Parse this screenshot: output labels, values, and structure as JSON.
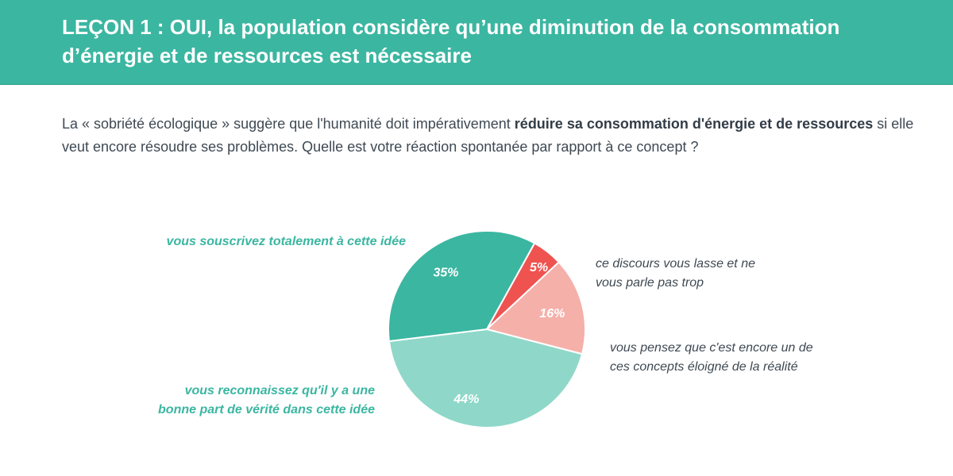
{
  "header": {
    "title": "LEÇON 1 : OUI, la population considère qu’une diminution de la consommation d’énergie et de ressources est nécessaire"
  },
  "question": {
    "part1": "La « sobriété écologique » suggère que l'humanité doit impérativement ",
    "bold": "réduire sa consommation d'énergie et de ressources",
    "part2": " si elle veut encore résoudre ses problèmes. Quelle est votre réaction spontanée par rapport à ce concept ?"
  },
  "chart_data": {
    "type": "pie",
    "start_angle_deg": -61,
    "slices": [
      {
        "label_lines": [
          "ce discours vous lasse et ne",
          "vous parle pas trop"
        ],
        "value": 5,
        "display": "5%",
        "color": "#ef5350",
        "label_color": "#3e4953",
        "label_bold": false,
        "label_anchor": "start"
      },
      {
        "label_lines": [
          "vous pensez que c'est encore un de",
          "ces concepts éloigné de la réalité"
        ],
        "value": 16,
        "display": "16%",
        "color": "#f5b0aa",
        "label_color": "#3e4953",
        "label_bold": false,
        "label_anchor": "start"
      },
      {
        "label_lines": [
          "vous reconnaissez qu'il y a une",
          "bonne part de vérité dans cette idée"
        ],
        "value": 44,
        "display": "44%",
        "color": "#8fd8c9",
        "label_color": "#3bb6a1",
        "label_bold": true,
        "label_anchor": "end"
      },
      {
        "label_lines": [
          "vous souscrivez totalement à cette idée"
        ],
        "value": 35,
        "display": "35%",
        "color": "#3bb6a1",
        "label_color": "#3bb6a1",
        "label_bold": true,
        "label_anchor": "end"
      }
    ]
  }
}
